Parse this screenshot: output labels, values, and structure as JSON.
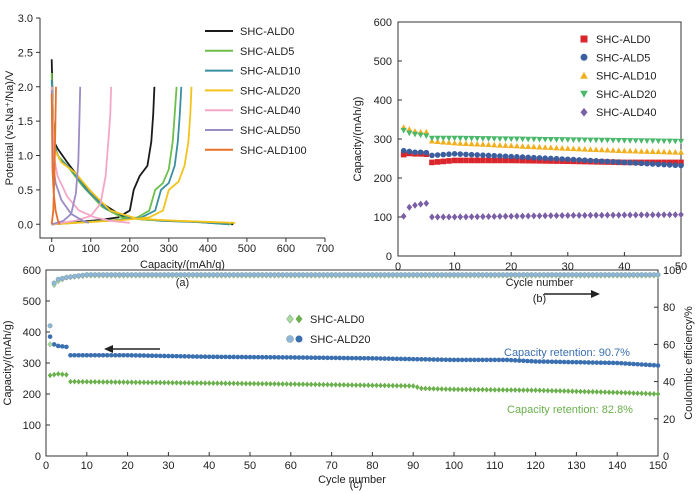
{
  "colors": {
    "SHC-ALD0": "#1a1a1a",
    "SHC-ALD5": "#6cbf4a",
    "SHC-ALD10": "#3a8fa0",
    "SHC-ALD20": "#f2c31b",
    "SHC-ALD40": "#f4a6c6",
    "SHC-ALD50": "#9b8cc4",
    "SHC-ALD100": "#e8702a",
    "b_ALD0": "#d9252b",
    "b_ALD5": "#3b5f9e",
    "b_ALD10": "#f2b01e",
    "b_ALD20": "#4ab86a",
    "b_ALD40": "#7a5fa6",
    "c_ALD0": "#6ab04c",
    "c_ALD20": "#3a6fb0",
    "c_ALD0_ce": "#a8d89a",
    "c_ALD20_ce": "#8fb6da",
    "retention_blue": "#3a6fb0",
    "retention_green": "#6ab04c"
  },
  "chart_data": [
    {
      "type": "line",
      "panel_label": "(a)",
      "xlabel": "Capacity/(mAh/g)",
      "ylabel": "Potential (vs.Na⁺/Na)/V",
      "xlim": [
        -30,
        700
      ],
      "ylim": [
        -0.2,
        3.0
      ],
      "xticks": [
        0,
        100,
        200,
        300,
        400,
        500,
        600,
        700
      ],
      "yticks": [
        "0.0",
        "0.5",
        "1.0",
        "1.5",
        "2.0",
        "2.5",
        "3.0"
      ],
      "legend_position": "top-right",
      "series": [
        {
          "name": "SHC-ALD0",
          "discharge": [
            [
              0,
              2.4
            ],
            [
              3,
              1.6
            ],
            [
              6,
              1.2
            ],
            [
              15,
              1.1
            ],
            [
              40,
              0.9
            ],
            [
              80,
              0.6
            ],
            [
              130,
              0.3
            ],
            [
              180,
              0.12
            ],
            [
              230,
              0.07
            ],
            [
              300,
              0.05
            ],
            [
              400,
              0.03
            ],
            [
              465,
              0.0
            ]
          ],
          "charge": [
            [
              0,
              0.0
            ],
            [
              60,
              0.03
            ],
            [
              120,
              0.06
            ],
            [
              170,
              0.1
            ],
            [
              200,
              0.2
            ],
            [
              210,
              0.5
            ],
            [
              225,
              0.7
            ],
            [
              245,
              0.85
            ],
            [
              255,
              1.2
            ],
            [
              260,
              1.6
            ],
            [
              263,
              2.0
            ]
          ]
        },
        {
          "name": "SHC-ALD5",
          "discharge": [
            [
              0,
              2.2
            ],
            [
              5,
              1.2
            ],
            [
              15,
              1.0
            ],
            [
              40,
              0.85
            ],
            [
              80,
              0.55
            ],
            [
              130,
              0.25
            ],
            [
              180,
              0.1
            ],
            [
              250,
              0.06
            ],
            [
              350,
              0.04
            ],
            [
              460,
              0.0
            ]
          ],
          "charge": [
            [
              0,
              0.0
            ],
            [
              80,
              0.03
            ],
            [
              160,
              0.06
            ],
            [
              220,
              0.1
            ],
            [
              250,
              0.2
            ],
            [
              265,
              0.5
            ],
            [
              285,
              0.6
            ],
            [
              300,
              0.8
            ],
            [
              310,
              1.2
            ],
            [
              315,
              1.6
            ],
            [
              320,
              2.0
            ]
          ]
        },
        {
          "name": "SHC-ALD10",
          "discharge": [
            [
              0,
              2.1
            ],
            [
              5,
              1.15
            ],
            [
              20,
              0.95
            ],
            [
              50,
              0.8
            ],
            [
              90,
              0.5
            ],
            [
              140,
              0.22
            ],
            [
              200,
              0.1
            ],
            [
              280,
              0.05
            ],
            [
              380,
              0.03
            ],
            [
              455,
              0.0
            ]
          ],
          "charge": [
            [
              0,
              0.0
            ],
            [
              80,
              0.03
            ],
            [
              170,
              0.06
            ],
            [
              230,
              0.1
            ],
            [
              265,
              0.2
            ],
            [
              280,
              0.5
            ],
            [
              300,
              0.6
            ],
            [
              315,
              0.85
            ],
            [
              323,
              1.2
            ],
            [
              328,
              1.6
            ],
            [
              332,
              2.0
            ]
          ]
        },
        {
          "name": "SHC-ALD20",
          "discharge": [
            [
              0,
              2.0
            ],
            [
              6,
              1.1
            ],
            [
              25,
              0.9
            ],
            [
              60,
              0.75
            ],
            [
              100,
              0.48
            ],
            [
              150,
              0.2
            ],
            [
              220,
              0.08
            ],
            [
              320,
              0.05
            ],
            [
              420,
              0.03
            ],
            [
              470,
              0.02
            ]
          ],
          "charge": [
            [
              0,
              0.0
            ],
            [
              90,
              0.03
            ],
            [
              180,
              0.06
            ],
            [
              250,
              0.1
            ],
            [
              285,
              0.2
            ],
            [
              300,
              0.5
            ],
            [
              325,
              0.62
            ],
            [
              340,
              0.85
            ],
            [
              350,
              1.2
            ],
            [
              355,
              1.6
            ],
            [
              358,
              2.0
            ]
          ]
        },
        {
          "name": "SHC-ALD40",
          "discharge": [
            [
              0,
              2.0
            ],
            [
              5,
              1.0
            ],
            [
              15,
              0.7
            ],
            [
              40,
              0.4
            ],
            [
              70,
              0.2
            ],
            [
              110,
              0.1
            ],
            [
              150,
              0.05
            ],
            [
              200,
              0.02
            ]
          ],
          "charge": [
            [
              0,
              0.0
            ],
            [
              60,
              0.05
            ],
            [
              100,
              0.12
            ],
            [
              125,
              0.3
            ],
            [
              138,
              0.7
            ],
            [
              145,
              1.2
            ],
            [
              150,
              1.6
            ],
            [
              152,
              2.0
            ]
          ]
        },
        {
          "name": "SHC-ALD50",
          "discharge": [
            [
              0,
              1.95
            ],
            [
              3,
              0.9
            ],
            [
              10,
              0.6
            ],
            [
              25,
              0.35
            ],
            [
              50,
              0.15
            ],
            [
              80,
              0.05
            ],
            [
              95,
              0.02
            ]
          ],
          "charge": [
            [
              0,
              0.0
            ],
            [
              30,
              0.05
            ],
            [
              50,
              0.15
            ],
            [
              62,
              0.45
            ],
            [
              68,
              0.9
            ],
            [
              71,
              1.5
            ],
            [
              73,
              2.0
            ]
          ]
        },
        {
          "name": "SHC-ALD100",
          "discharge": [
            [
              0,
              1.9
            ],
            [
              2,
              0.8
            ],
            [
              5,
              0.45
            ],
            [
              10,
              0.2
            ],
            [
              16,
              0.05
            ],
            [
              20,
              0.0
            ]
          ],
          "charge": [
            [
              0,
              0.0
            ],
            [
              4,
              0.2
            ],
            [
              7,
              0.7
            ],
            [
              9,
              1.3
            ],
            [
              11,
              2.0
            ]
          ]
        }
      ]
    },
    {
      "type": "scatter",
      "panel_label": "(b)",
      "xlabel": "Cycle number",
      "ylabel": "Capacity/(mAh/g)",
      "xlim": [
        0,
        50
      ],
      "ylim": [
        0,
        600
      ],
      "xticks": [
        0,
        10,
        20,
        30,
        40,
        50
      ],
      "yticks": [
        0,
        100,
        200,
        300,
        400,
        500,
        600
      ],
      "legend_position": "top-right",
      "series": [
        {
          "name": "SHC-ALD0",
          "marker": "square",
          "points": [
            [
              1,
              260
            ],
            [
              2,
              263
            ],
            [
              3,
              262
            ],
            [
              4,
              262
            ],
            [
              5,
              261
            ],
            [
              6,
              240
            ],
            [
              10,
              245
            ],
            [
              20,
              245
            ],
            [
              30,
              243
            ],
            [
              40,
              240
            ],
            [
              50,
              240
            ]
          ]
        },
        {
          "name": "SHC-ALD5",
          "marker": "circle",
          "points": [
            [
              1,
              270
            ],
            [
              2,
              268
            ],
            [
              3,
              266
            ],
            [
              4,
              266
            ],
            [
              5,
              265
            ],
            [
              6,
              258
            ],
            [
              10,
              262
            ],
            [
              20,
              255
            ],
            [
              30,
              248
            ],
            [
              40,
              240
            ],
            [
              50,
              232
            ]
          ]
        },
        {
          "name": "SHC-ALD10",
          "marker": "triangle",
          "points": [
            [
              1,
              330
            ],
            [
              2,
              325
            ],
            [
              3,
              320
            ],
            [
              4,
              318
            ],
            [
              5,
              318
            ],
            [
              6,
              295
            ],
            [
              10,
              290
            ],
            [
              20,
              283
            ],
            [
              30,
              276
            ],
            [
              40,
              270
            ],
            [
              50,
              266
            ]
          ]
        },
        {
          "name": "SHC-ALD20",
          "marker": "triangle-down",
          "points": [
            [
              1,
              322
            ],
            [
              2,
              315
            ],
            [
              3,
              312
            ],
            [
              4,
              310
            ],
            [
              5,
              308
            ],
            [
              6,
              302
            ],
            [
              10,
              302
            ],
            [
              20,
              300
            ],
            [
              30,
              298
            ],
            [
              40,
              296
            ],
            [
              50,
              294
            ]
          ]
        },
        {
          "name": "SHC-ALD40",
          "marker": "diamond",
          "points": [
            [
              1,
              102
            ],
            [
              2,
              125
            ],
            [
              3,
              130
            ],
            [
              4,
              133
            ],
            [
              5,
              135
            ],
            [
              6,
              100
            ],
            [
              10,
              100
            ],
            [
              20,
              102
            ],
            [
              30,
              104
            ],
            [
              40,
              105
            ],
            [
              50,
              106
            ]
          ]
        }
      ]
    },
    {
      "type": "scatter",
      "panel_label": "(c)",
      "xlabel": "Cycle number",
      "ylabel": "Capacity/(mAh/g)",
      "y2label": "Coulombic efficiency/%",
      "xlim": [
        0,
        150
      ],
      "ylim": [
        0,
        600
      ],
      "y2lim": [
        0,
        100
      ],
      "xticks": [
        0,
        10,
        20,
        30,
        40,
        50,
        60,
        70,
        80,
        90,
        100,
        110,
        120,
        130,
        140,
        150
      ],
      "yticks": [
        0,
        100,
        200,
        300,
        400,
        500,
        600
      ],
      "y2ticks": [
        0,
        20,
        40,
        60,
        80,
        100
      ],
      "legend_position": "center-left",
      "annotations": [
        "Capacity retention: 90.7%",
        "Capacity retention: 82.8%"
      ],
      "series": [
        {
          "name": "SHC-ALD0",
          "axis": "left",
          "marker": "diamond",
          "points": [
            [
              1,
              260
            ],
            [
              3,
              265
            ],
            [
              5,
              262
            ],
            [
              6,
              240
            ],
            [
              20,
              238
            ],
            [
              40,
              235
            ],
            [
              60,
              232
            ],
            [
              80,
              228
            ],
            [
              90,
              226
            ],
            [
              92,
              218
            ],
            [
              100,
              215
            ],
            [
              120,
              212
            ],
            [
              140,
              205
            ],
            [
              150,
              200
            ]
          ]
        },
        {
          "name": "SHC-ALD20",
          "axis": "left",
          "marker": "circle",
          "points": [
            [
              1,
              385
            ],
            [
              2,
              360
            ],
            [
              3,
              355
            ],
            [
              5,
              352
            ],
            [
              6,
              325
            ],
            [
              20,
              325
            ],
            [
              40,
              320
            ],
            [
              60,
              318
            ],
            [
              80,
              315
            ],
            [
              100,
              310
            ],
            [
              113,
              310
            ],
            [
              120,
              305
            ],
            [
              140,
              300
            ],
            [
              150,
              292
            ]
          ]
        },
        {
          "name": "SHC-ALD0",
          "axis": "right",
          "marker": "diamond",
          "points": [
            [
              1,
              60
            ],
            [
              2,
              92
            ],
            [
              3,
              94
            ],
            [
              5,
              96
            ],
            [
              10,
              97
            ],
            [
              50,
              97
            ],
            [
              100,
              97
            ],
            [
              150,
              97
            ]
          ]
        },
        {
          "name": "SHC-ALD20",
          "axis": "right",
          "marker": "circle",
          "points": [
            [
              1,
              70
            ],
            [
              2,
              93
            ],
            [
              3,
              95
            ],
            [
              5,
              96
            ],
            [
              10,
              97.5
            ],
            [
              50,
              97.5
            ],
            [
              100,
              97.5
            ],
            [
              150,
              97.5
            ]
          ]
        }
      ]
    }
  ]
}
